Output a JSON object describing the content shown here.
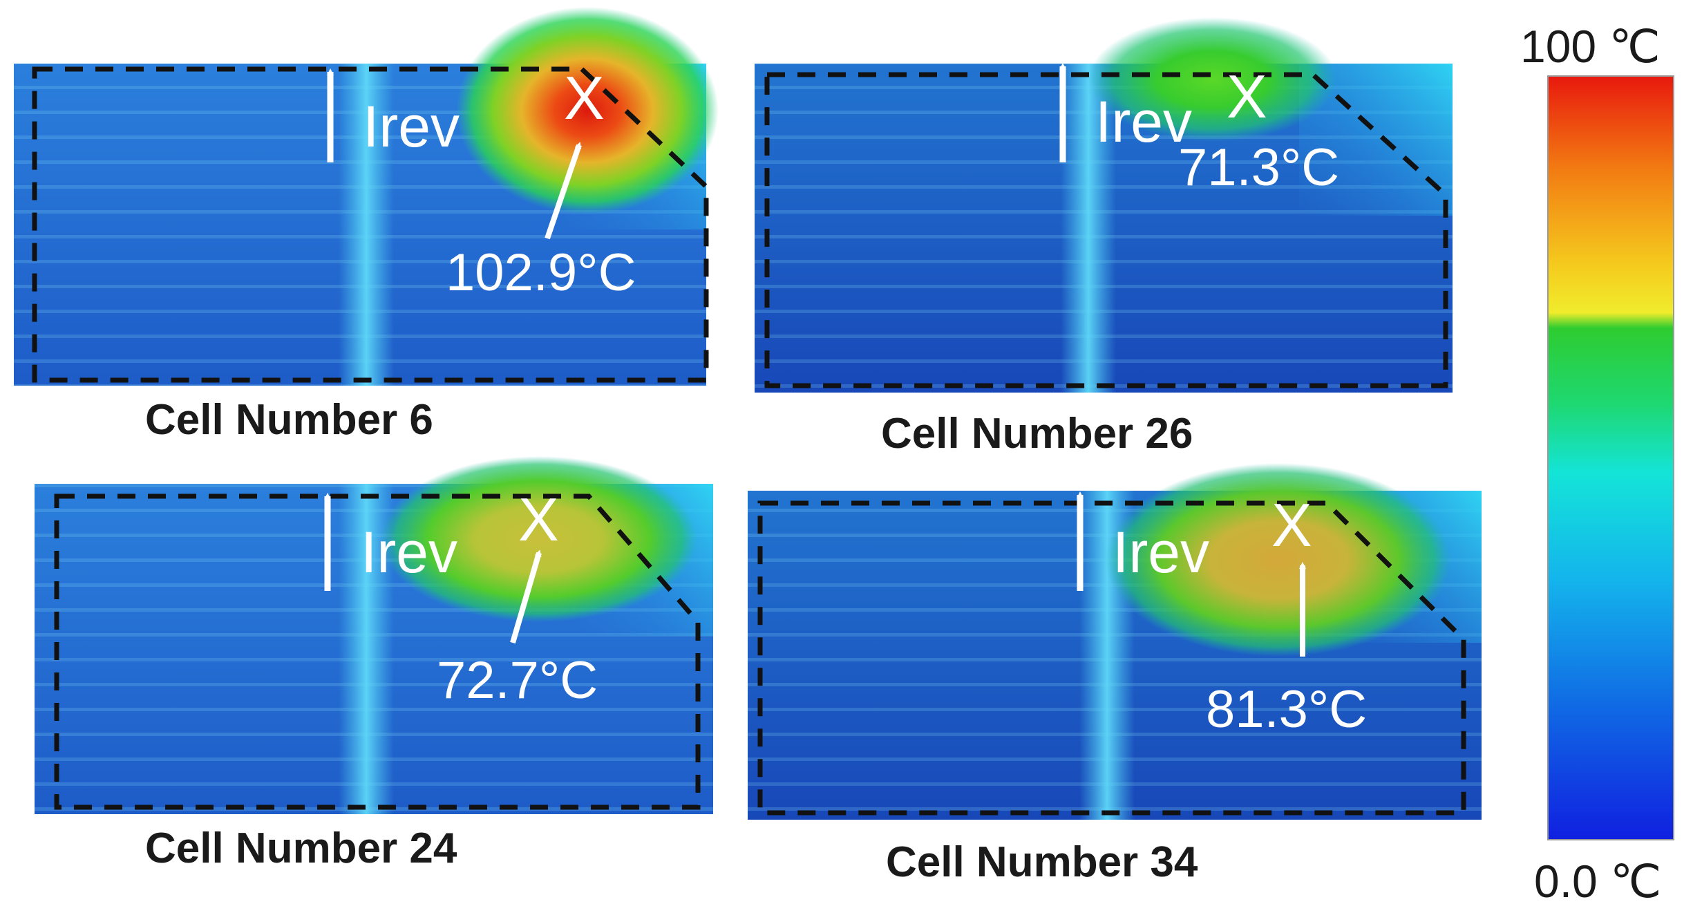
{
  "panels": [
    {
      "caption": "Cell Number 6",
      "current_label": "Irev",
      "hotspot_marker": "X",
      "hotspot_temperature": "102.9°C",
      "hotspot_color": "#d81e10"
    },
    {
      "caption": "Cell Number 26",
      "current_label": "Irev",
      "hotspot_marker": "X",
      "hotspot_temperature": "71.3°C",
      "hotspot_color": "#4ccf28"
    },
    {
      "caption": "Cell Number 24",
      "current_label": "Irev",
      "hotspot_marker": "X",
      "hotspot_temperature": "72.7°C",
      "hotspot_color": "#b9c038"
    },
    {
      "caption": "Cell Number 34",
      "current_label": "Irev",
      "hotspot_marker": "X",
      "hotspot_temperature": "81.3°C",
      "hotspot_color": "#c8a83a"
    }
  ],
  "color_scale": {
    "max_label": "100 ℃",
    "min_label": "0.0 ℃",
    "stops": [
      "#e8190e",
      "#f27a12",
      "#f5cc1e",
      "#f0ec2c",
      "#2ecc30",
      "#1ed872",
      "#14e4d8",
      "#14b4ec",
      "#106ce4",
      "#1020e0"
    ]
  }
}
